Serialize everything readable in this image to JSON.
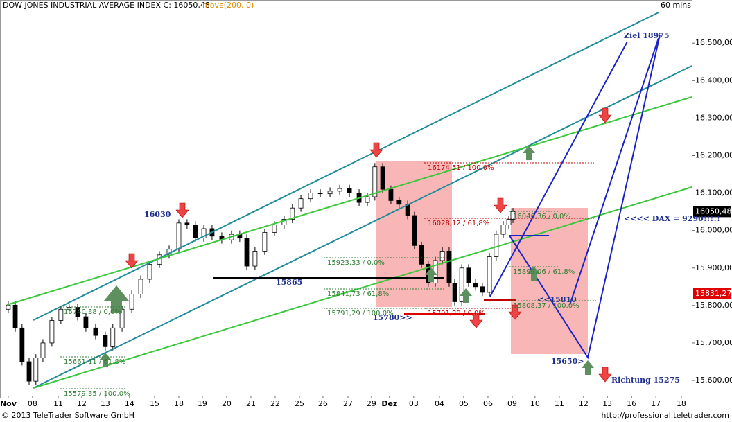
{
  "chart_data": {
    "type": "candlestick",
    "title": "DOW JONES INDUSTRIAL AVERAGE INDEX C: 16050,48",
    "indicator": "move(200, 0)",
    "timeframe": "60 mins",
    "x": [
      0,
      0.29,
      0.57,
      0.86,
      1.14,
      1.43,
      1.8,
      2.17,
      2.51,
      2.86,
      3.2,
      3.6,
      4,
      4.31,
      4.69,
      5.09,
      5.46,
      5.83,
      6.23,
      6.63,
      7.03,
      7.37,
      7.71,
      8.06,
      8.4,
      8.8,
      9.2,
      9.54,
      9.83,
      10.17,
      10.57,
      10.97,
      11.37,
      11.71,
      12.06,
      12.46,
      12.86,
      13.26,
      13.66,
      14.06,
      14.46,
      14.8,
      15.11,
      15.43,
      15.77,
      16.11,
      16.46,
      16.74,
      17.03,
      17.31,
      17.6,
      17.89,
      18.17,
      18.4,
      18.69,
      18.97,
      19.26,
      19.54,
      19.83,
      20.11,
      20.4,
      20.63,
      20.8
    ],
    "open": [
      15790,
      15801,
      15740,
      15650,
      15598,
      15660,
      15700,
      15760,
      15790,
      15795,
      15770,
      15740,
      15720,
      15690,
      15740,
      15790,
      15830,
      15870,
      15910,
      15935,
      15950,
      16020,
      16015,
      15980,
      16005,
      15985,
      15975,
      15990,
      15980,
      15905,
      15945,
      15995,
      16015,
      16030,
      16060,
      16085,
      16100,
      16098,
      16105,
      16112,
      16100,
      16075,
      16090,
      16170,
      16110,
      16080,
      16070,
      16040,
      15960,
      15910,
      15860,
      15920,
      15945,
      15860,
      15810,
      15900,
      15860,
      15850,
      15835,
      15930,
      15990,
      16015,
      16030
    ],
    "high": [
      15811,
      15811,
      15750,
      15660,
      15670,
      15710,
      15770,
      15800,
      15805,
      15805,
      15780,
      15750,
      15730,
      15750,
      15800,
      15840,
      15880,
      15920,
      15945,
      15960,
      16030,
      16030,
      16025,
      16015,
      16015,
      15995,
      16000,
      16000,
      15990,
      15955,
      16005,
      16025,
      16040,
      16070,
      16095,
      16110,
      16110,
      16115,
      16122,
      16122,
      16110,
      16100,
      16180,
      16180,
      16120,
      16090,
      16080,
      16050,
      15970,
      15920,
      15930,
      15955,
      15955,
      15870,
      15910,
      15910,
      15870,
      15860,
      15940,
      16000,
      16025,
      16040,
      16060
    ],
    "low": [
      15780,
      15730,
      15640,
      15588,
      15588,
      15650,
      15690,
      15750,
      15780,
      15760,
      15730,
      15710,
      15680,
      15680,
      15730,
      15780,
      15820,
      15860,
      15900,
      15925,
      15940,
      16005,
      15970,
      15970,
      15975,
      15965,
      15965,
      15970,
      15895,
      15895,
      15935,
      15985,
      16005,
      16020,
      16050,
      16075,
      16088,
      16088,
      16095,
      16090,
      16065,
      16065,
      16080,
      16100,
      16070,
      16060,
      16030,
      15950,
      15900,
      15850,
      15850,
      15910,
      15850,
      15800,
      15800,
      15850,
      15840,
      15825,
      15825,
      15920,
      15980,
      16005,
      16020
    ],
    "close": [
      15801,
      15740,
      15650,
      15598,
      15660,
      15700,
      15760,
      15790,
      15795,
      15770,
      15740,
      15720,
      15690,
      15740,
      15790,
      15830,
      15870,
      15910,
      15935,
      15950,
      16020,
      16015,
      15980,
      16005,
      15985,
      15975,
      15990,
      15980,
      15905,
      15945,
      15995,
      16015,
      16030,
      16060,
      16085,
      16100,
      16098,
      16105,
      16112,
      16100,
      16075,
      16090,
      16170,
      16110,
      16080,
      16070,
      16040,
      15960,
      15910,
      15860,
      15920,
      15945,
      15860,
      15810,
      15900,
      15860,
      15850,
      15835,
      15930,
      15990,
      16015,
      16030,
      16050.48
    ],
    "up_color": "#ffffff",
    "down_color": "#000000",
    "xlim": [
      -0.34,
      28.17
    ],
    "xticks": [
      {
        "value": 0,
        "label": "Nov"
      },
      {
        "value": 1,
        "label": "08"
      },
      {
        "value": 2.06,
        "label": "11"
      },
      {
        "value": 3.03,
        "label": "12"
      },
      {
        "value": 4,
        "label": "13"
      },
      {
        "value": 5,
        "label": "14"
      },
      {
        "value": 6.03,
        "label": "15"
      },
      {
        "value": 7.03,
        "label": "18"
      },
      {
        "value": 8,
        "label": "19"
      },
      {
        "value": 9,
        "label": "20"
      },
      {
        "value": 10,
        "label": "21"
      },
      {
        "value": 11,
        "label": "22"
      },
      {
        "value": 12,
        "label": "25"
      },
      {
        "value": 12.97,
        "label": "26"
      },
      {
        "value": 14,
        "label": "27"
      },
      {
        "value": 14.97,
        "label": "29"
      },
      {
        "value": 15.71,
        "label": "Dez"
      },
      {
        "value": 16.71,
        "label": "03"
      },
      {
        "value": 17.77,
        "label": "04"
      },
      {
        "value": 18.77,
        "label": "05"
      },
      {
        "value": 19.77,
        "label": "06"
      },
      {
        "value": 20.77,
        "label": "09"
      },
      {
        "value": 21.71,
        "label": "10"
      },
      {
        "value": 22.71,
        "label": "11"
      },
      {
        "value": 23.71,
        "label": "12"
      },
      {
        "value": 24.69,
        "label": "13"
      },
      {
        "value": 25.69,
        "label": "16"
      },
      {
        "value": 26.69,
        "label": "17"
      },
      {
        "value": 27.74,
        "label": "18"
      }
    ],
    "ylim": [
      15552,
      16615
    ],
    "yticks": [
      {
        "value": 15600,
        "label": "15.600,00"
      },
      {
        "value": 15700,
        "label": "15.700,00"
      },
      {
        "value": 15800,
        "label": "15.800,00"
      },
      {
        "value": 15900,
        "label": "15.900,00"
      },
      {
        "value": 16000,
        "label": "16.000,00"
      },
      {
        "value": 16100,
        "label": "16.100,00"
      },
      {
        "value": 16200,
        "label": "16.200,00"
      },
      {
        "value": 16300,
        "label": "16.300,00"
      },
      {
        "value": 16400,
        "label": "16.400,00"
      },
      {
        "value": 16500,
        "label": "16.500,00"
      }
    ],
    "last_price": {
      "value": 16050.48,
      "label": "16050,48"
    },
    "marker_price": {
      "value": 15831.27,
      "label": "15831,27"
    },
    "annotations": [
      "Ziel 18975",
      "16030",
      "15865",
      "<<<< DAX = 9290!!!!!",
      "15780>>",
      "<<15810",
      "15650>",
      "Richtung 15275"
    ],
    "fib_labels": [
      "16174,51 / 100,0%",
      "16028,12 / 61,8%",
      "15791,29 / 0,0%",
      "15923,33 / 0,0%",
      "15841,73 / 61,8%",
      "15791,29 / 100,0%",
      "16046,36 / 0,0%",
      "15899,06 / 61,8%",
      "15808,37 / 100,0%",
      "15740,38 / 0,0%",
      "15661,11 / 61,8%",
      "15579,35 / 100,0%"
    ]
  },
  "footer": {
    "copyright": "© 2013 TeleTrader Software GmbH",
    "url": "http://professional.teletrader.com"
  }
}
